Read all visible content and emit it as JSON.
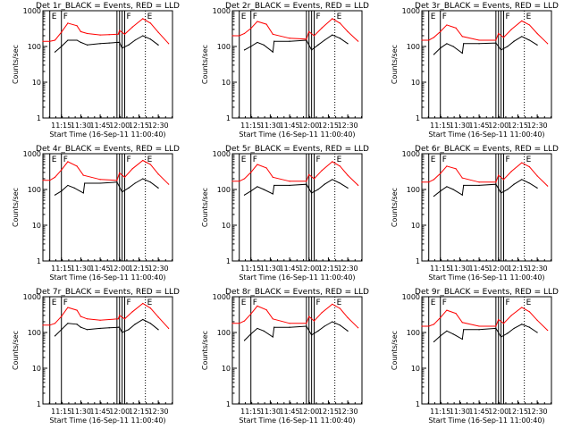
{
  "figure": {
    "title_template": "Det {det}r_BLACK = Events, RED = LLD",
    "ylabel": "Counts/sec",
    "xlabel": "Start Time (16-Sep-11 11:00:40)",
    "colors": {
      "events": "#000000",
      "lld": "#ff0000",
      "axes": "#000000"
    }
  },
  "chart_data": [
    {
      "type": "line",
      "title": "Det 1r_BLACK = Events, RED = LLD",
      "xlabel": "Start Time (16-Sep-11 11:00:40)",
      "ylabel": "Counts/sec",
      "yscale": "log",
      "ylim": [
        1,
        1000
      ],
      "xlim": [
        "11:00:40",
        "12:41:00"
      ],
      "x_ticks": [
        "11:15",
        "11:30",
        "11:45",
        "12:00",
        "12:15",
        "12:30"
      ],
      "y_ticks": [
        "1",
        "10",
        "100",
        "1000"
      ],
      "markers": [
        "E",
        "F",
        "F",
        "E"
      ],
      "series": [
        {
          "name": "Events",
          "x": [
            "11:10",
            "11:15",
            "11:20",
            "11:27",
            "11:30",
            "11:35",
            "11:45",
            "11:52",
            "11:59",
            "12:00",
            "12:02",
            "12:07",
            "12:12",
            "12:18",
            "12:24",
            "12:30"
          ],
          "y": [
            70,
            100,
            150,
            150,
            130,
            110,
            120,
            125,
            130,
            130,
            90,
            110,
            150,
            200,
            160,
            110
          ]
        },
        {
          "name": "LLD",
          "x": [
            "11:00:40",
            "11:06",
            "11:10",
            "11:15",
            "11:20",
            "11:27",
            "11:30",
            "11:35",
            "11:45",
            "11:52",
            "11:59",
            "12:00",
            "12:04",
            "12:10",
            "12:18",
            "12:24",
            "12:30",
            "12:38"
          ],
          "y": [
            140,
            140,
            150,
            250,
            450,
            380,
            260,
            230,
            210,
            215,
            220,
            280,
            220,
            350,
            600,
            450,
            250,
            120
          ]
        }
      ]
    },
    {
      "type": "line",
      "title": "Det 2r_BLACK = Events, RED = LLD",
      "xlabel": "Start Time (16-Sep-11 11:00:40)",
      "ylabel": "Counts/sec",
      "yscale": "log",
      "ylim": [
        1,
        1000
      ],
      "xlim": [
        "11:00:40",
        "12:41:00"
      ],
      "x_ticks": [
        "11:15",
        "11:30",
        "11:45",
        "12:00",
        "12:15",
        "12:30"
      ],
      "y_ticks": [
        "1",
        "10",
        "100",
        "1000"
      ],
      "markers": [
        "E",
        "F",
        "F",
        "E"
      ],
      "series": [
        {
          "name": "Events",
          "x": [
            "11:10",
            "11:15",
            "11:20",
            "11:25",
            "11:32",
            "11:33",
            "11:45",
            "11:58",
            "12:02",
            "12:07",
            "12:12",
            "12:18",
            "12:24",
            "12:30"
          ],
          "y": [
            80,
            100,
            130,
            110,
            70,
            140,
            140,
            150,
            80,
            110,
            150,
            210,
            170,
            120
          ]
        },
        {
          "name": "LLD",
          "x": [
            "11:00:40",
            "11:06",
            "11:10",
            "11:15",
            "11:20",
            "11:27",
            "11:32",
            "11:45",
            "11:58",
            "12:00",
            "12:04",
            "12:10",
            "12:18",
            "12:24",
            "12:30",
            "12:38"
          ],
          "y": [
            200,
            200,
            230,
            320,
            500,
            420,
            220,
            170,
            160,
            260,
            200,
            330,
            600,
            450,
            260,
            140
          ]
        }
      ]
    },
    {
      "type": "line",
      "title": "Det 3r_BLACK = Events, RED = LLD",
      "xlabel": "Start Time (16-Sep-11 11:00:40)",
      "ylabel": "Counts/sec",
      "yscale": "log",
      "ylim": [
        1,
        1000
      ],
      "xlim": [
        "11:00:40",
        "12:41:00"
      ],
      "x_ticks": [
        "11:15",
        "11:30",
        "11:45",
        "12:00",
        "12:15",
        "12:30"
      ],
      "y_ticks": [
        "1",
        "10",
        "100",
        "1000"
      ],
      "markers": [
        "E",
        "F",
        "F",
        "E"
      ],
      "series": [
        {
          "name": "Events",
          "x": [
            "11:10",
            "11:15",
            "11:20",
            "11:25",
            "11:32",
            "11:33",
            "11:45",
            "11:58",
            "12:02",
            "12:07",
            "12:12",
            "12:18",
            "12:24",
            "12:30"
          ],
          "y": [
            60,
            90,
            120,
            100,
            65,
            120,
            120,
            125,
            80,
            100,
            140,
            190,
            150,
            110
          ]
        },
        {
          "name": "LLD",
          "x": [
            "11:00:40",
            "11:06",
            "11:10",
            "11:15",
            "11:20",
            "11:27",
            "11:32",
            "11:45",
            "11:58",
            "12:00",
            "12:04",
            "12:10",
            "12:18",
            "12:24",
            "12:30",
            "12:38"
          ],
          "y": [
            150,
            150,
            180,
            260,
            400,
            330,
            190,
            150,
            150,
            230,
            180,
            300,
            520,
            400,
            230,
            120
          ]
        }
      ]
    },
    {
      "type": "line",
      "title": "Det 4r_BLACK = Events, RED = LLD",
      "xlabel": "Start Time (16-Sep-11 11:00:40)",
      "ylabel": "Counts/sec",
      "yscale": "log",
      "ylim": [
        1,
        1000
      ],
      "xlim": [
        "11:00:40",
        "12:41:00"
      ],
      "x_ticks": [
        "11:15",
        "11:30",
        "11:45",
        "12:00",
        "12:15",
        "12:30"
      ],
      "y_ticks": [
        "1",
        "10",
        "100",
        "1000"
      ],
      "markers": [
        "E",
        "F",
        "F",
        "E"
      ],
      "series": [
        {
          "name": "Events",
          "x": [
            "11:10",
            "11:15",
            "11:20",
            "11:25",
            "11:32",
            "11:33",
            "11:45",
            "11:58",
            "12:02",
            "12:07",
            "12:12",
            "12:18",
            "12:24",
            "12:30"
          ],
          "y": [
            70,
            90,
            130,
            110,
            80,
            150,
            150,
            160,
            85,
            110,
            150,
            200,
            160,
            110
          ]
        },
        {
          "name": "LLD",
          "x": [
            "11:00:40",
            "11:06",
            "11:10",
            "11:15",
            "11:20",
            "11:27",
            "11:32",
            "11:45",
            "11:58",
            "12:00",
            "12:04",
            "12:10",
            "12:18",
            "12:24",
            "12:30",
            "12:38"
          ],
          "y": [
            180,
            180,
            220,
            350,
            600,
            450,
            250,
            190,
            180,
            290,
            220,
            380,
            650,
            500,
            270,
            140
          ]
        }
      ]
    },
    {
      "type": "line",
      "title": "Det 5r_BLACK = Events, RED = LLD",
      "xlabel": "Start Time (16-Sep-11 11:00:40)",
      "ylabel": "Counts/sec",
      "yscale": "log",
      "ylim": [
        1,
        1000
      ],
      "xlim": [
        "11:00:40",
        "12:41:00"
      ],
      "x_ticks": [
        "11:15",
        "11:30",
        "11:45",
        "12:00",
        "12:15",
        "12:30"
      ],
      "y_ticks": [
        "1",
        "10",
        "100",
        "1000"
      ],
      "markers": [
        "E",
        "F",
        "F",
        "E"
      ],
      "series": [
        {
          "name": "Events",
          "x": [
            "11:10",
            "11:15",
            "11:20",
            "11:25",
            "11:32",
            "11:33",
            "11:45",
            "11:58",
            "12:02",
            "12:07",
            "12:12",
            "12:18",
            "12:24",
            "12:30"
          ],
          "y": [
            70,
            90,
            120,
            100,
            75,
            130,
            130,
            140,
            80,
            100,
            140,
            190,
            150,
            110
          ]
        },
        {
          "name": "LLD",
          "x": [
            "11:00:40",
            "11:06",
            "11:10",
            "11:15",
            "11:20",
            "11:27",
            "11:32",
            "11:45",
            "11:58",
            "12:00",
            "12:04",
            "12:10",
            "12:18",
            "12:24",
            "12:30",
            "12:38"
          ],
          "y": [
            170,
            170,
            200,
            300,
            500,
            400,
            220,
            170,
            170,
            260,
            200,
            340,
            600,
            450,
            250,
            130
          ]
        }
      ]
    },
    {
      "type": "line",
      "title": "Det 6r_BLACK = Events, RED = LLD",
      "xlabel": "Start Time (16-Sep-11 11:00:40)",
      "ylabel": "Counts/sec",
      "yscale": "log",
      "ylim": [
        1,
        1000
      ],
      "xlim": [
        "11:00:40",
        "12:41:00"
      ],
      "x_ticks": [
        "11:15",
        "11:30",
        "11:45",
        "12:00",
        "12:15",
        "12:30"
      ],
      "y_ticks": [
        "1",
        "10",
        "100",
        "1000"
      ],
      "markers": [
        "E",
        "F",
        "F",
        "E"
      ],
      "series": [
        {
          "name": "Events",
          "x": [
            "11:10",
            "11:15",
            "11:20",
            "11:25",
            "11:32",
            "11:33",
            "11:45",
            "11:58",
            "12:02",
            "12:07",
            "12:12",
            "12:18",
            "12:24",
            "12:30"
          ],
          "y": [
            65,
            90,
            120,
            100,
            70,
            130,
            130,
            140,
            80,
            100,
            140,
            190,
            150,
            110
          ]
        },
        {
          "name": "LLD",
          "x": [
            "11:00:40",
            "11:06",
            "11:10",
            "11:15",
            "11:20",
            "11:27",
            "11:32",
            "11:45",
            "11:58",
            "12:00",
            "12:04",
            "12:10",
            "12:18",
            "12:24",
            "12:30",
            "12:38"
          ],
          "y": [
            160,
            160,
            190,
            280,
            450,
            380,
            210,
            160,
            160,
            250,
            190,
            320,
            560,
            430,
            240,
            125
          ]
        }
      ]
    },
    {
      "type": "line",
      "title": "Det 7r_BLACK = Events, RED = LLD",
      "xlabel": "Start Time (16-Sep-11 11:00:40)",
      "ylabel": "Counts/sec",
      "yscale": "log",
      "ylim": [
        1,
        1000
      ],
      "xlim": [
        "11:00:40",
        "12:41:00"
      ],
      "x_ticks": [
        "11:15",
        "11:30",
        "11:45",
        "12:00",
        "12:15",
        "12:30"
      ],
      "y_ticks": [
        "1",
        "10",
        "100",
        "1000"
      ],
      "markers": [
        "E",
        "F",
        "F",
        "E"
      ],
      "series": [
        {
          "name": "Events",
          "x": [
            "11:10",
            "11:15",
            "11:20",
            "11:27",
            "11:30",
            "11:35",
            "11:45",
            "11:52",
            "11:59",
            "12:00",
            "12:02",
            "12:07",
            "12:12",
            "12:18",
            "12:24",
            "12:30"
          ],
          "y": [
            80,
            120,
            180,
            170,
            140,
            120,
            130,
            135,
            140,
            140,
            100,
            120,
            170,
            230,
            180,
            120
          ]
        },
        {
          "name": "LLD",
          "x": [
            "11:00:40",
            "11:06",
            "11:10",
            "11:15",
            "11:20",
            "11:27",
            "11:30",
            "11:35",
            "11:45",
            "11:52",
            "11:59",
            "12:00",
            "12:04",
            "12:10",
            "12:18",
            "12:24",
            "12:30",
            "12:38"
          ],
          "y": [
            160,
            160,
            180,
            280,
            500,
            420,
            280,
            240,
            220,
            230,
            240,
            300,
            240,
            380,
            650,
            480,
            270,
            130
          ]
        }
      ]
    },
    {
      "type": "line",
      "title": "Det 8r_BLACK = Events, RED = LLD",
      "xlabel": "Start Time (16-Sep-11 11:00:40)",
      "ylabel": "Counts/sec",
      "yscale": "log",
      "ylim": [
        1,
        1000
      ],
      "xlim": [
        "11:00:40",
        "12:41:00"
      ],
      "x_ticks": [
        "11:15",
        "11:30",
        "11:45",
        "12:00",
        "12:15",
        "12:30"
      ],
      "y_ticks": [
        "1",
        "10",
        "100",
        "1000"
      ],
      "markers": [
        "E",
        "F",
        "F",
        "E"
      ],
      "series": [
        {
          "name": "Events",
          "x": [
            "11:10",
            "11:15",
            "11:20",
            "11:25",
            "11:32",
            "11:33",
            "11:45",
            "11:58",
            "12:02",
            "12:07",
            "12:12",
            "12:18",
            "12:24",
            "12:30"
          ],
          "y": [
            60,
            90,
            130,
            110,
            75,
            140,
            140,
            150,
            85,
            110,
            150,
            200,
            160,
            110
          ]
        },
        {
          "name": "LLD",
          "x": [
            "11:00:40",
            "11:06",
            "11:10",
            "11:15",
            "11:20",
            "11:27",
            "11:32",
            "11:45",
            "11:58",
            "12:00",
            "12:04",
            "12:10",
            "12:18",
            "12:24",
            "12:30",
            "12:38"
          ],
          "y": [
            180,
            180,
            210,
            330,
            550,
            430,
            240,
            180,
            180,
            280,
            210,
            360,
            620,
            470,
            260,
            135
          ]
        }
      ]
    },
    {
      "type": "line",
      "title": "Det 9r_BLACK = Events, RED = LLD",
      "xlabel": "Start Time (16-Sep-11 11:00:40)",
      "ylabel": "Counts/sec",
      "yscale": "log",
      "ylim": [
        1,
        1000
      ],
      "xlim": [
        "11:00:40",
        "12:41:00"
      ],
      "x_ticks": [
        "11:15",
        "11:30",
        "11:45",
        "12:00",
        "12:15",
        "12:30"
      ],
      "y_ticks": [
        "1",
        "10",
        "100",
        "1000"
      ],
      "markers": [
        "E",
        "F",
        "F",
        "E"
      ],
      "series": [
        {
          "name": "Events",
          "x": [
            "11:10",
            "11:15",
            "11:20",
            "11:25",
            "11:32",
            "11:33",
            "11:45",
            "11:58",
            "12:02",
            "12:07",
            "12:12",
            "12:18",
            "12:24",
            "12:30"
          ],
          "y": [
            55,
            80,
            110,
            90,
            65,
            120,
            120,
            130,
            75,
            95,
            130,
            170,
            140,
            100
          ]
        },
        {
          "name": "LLD",
          "x": [
            "11:00:40",
            "11:06",
            "11:10",
            "11:15",
            "11:20",
            "11:27",
            "11:32",
            "11:45",
            "11:58",
            "12:00",
            "12:04",
            "12:10",
            "12:18",
            "12:24",
            "12:30",
            "12:38"
          ],
          "y": [
            150,
            150,
            170,
            260,
            420,
            340,
            190,
            150,
            150,
            230,
            180,
            300,
            500,
            380,
            220,
            115
          ]
        }
      ]
    }
  ]
}
